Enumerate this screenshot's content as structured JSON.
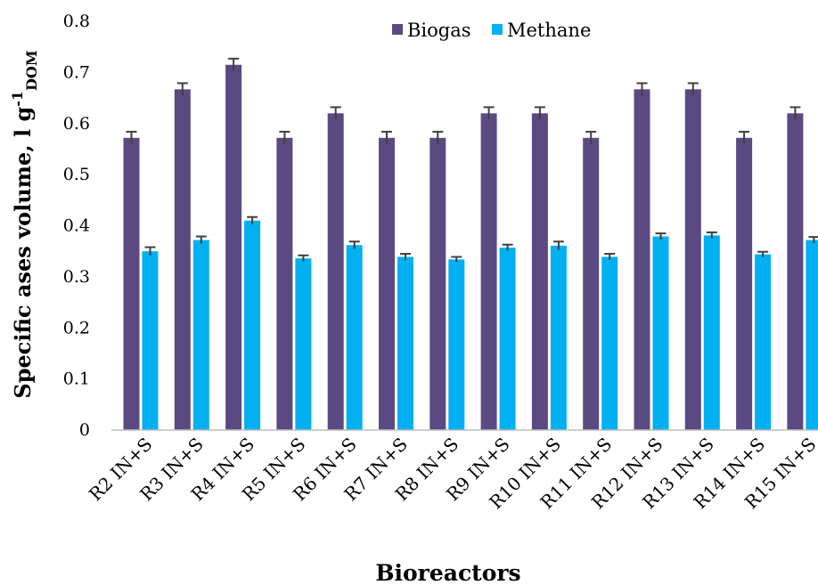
{
  "chart_data": {
    "type": "bar",
    "title": "",
    "xlabel": "Bioreactors",
    "ylabel": {
      "main": "Specific ases volume, l g",
      "sup": "-1",
      "sub": "DOM"
    },
    "ylim": [
      0,
      0.8
    ],
    "yticks": [
      "0",
      "0.1",
      "0.2",
      "0.3",
      "0.4",
      "0.5",
      "0.6",
      "0.7",
      "0.8"
    ],
    "legend_position": "top-right",
    "grid": false,
    "categories": [
      "R2 IN+S",
      "R3 IN+S",
      "R4 IN+S",
      "R5 IN+S",
      "R6 IN+S",
      "R7 IN+S",
      "R8 IN+S",
      "R9 IN+S",
      "R10 IN+S",
      "R11 IN+S",
      "R12 IN+S",
      "R13 IN+S",
      "R14 IN+S",
      "R15 IN+S"
    ],
    "series": [
      {
        "name": "Biogas",
        "color": "#5B4A82",
        "values": [
          0.572,
          0.667,
          0.715,
          0.572,
          0.62,
          0.572,
          0.572,
          0.62,
          0.62,
          0.572,
          0.667,
          0.667,
          0.572,
          0.62
        ],
        "errors": [
          0.012,
          0.012,
          0.012,
          0.012,
          0.012,
          0.012,
          0.012,
          0.012,
          0.012,
          0.012,
          0.012,
          0.012,
          0.012,
          0.012
        ]
      },
      {
        "name": "Methane",
        "color": "#00B0F0",
        "values": [
          0.35,
          0.372,
          0.41,
          0.336,
          0.362,
          0.339,
          0.334,
          0.357,
          0.361,
          0.339,
          0.379,
          0.381,
          0.344,
          0.372
        ],
        "errors": [
          0.008,
          0.007,
          0.007,
          0.006,
          0.007,
          0.006,
          0.005,
          0.006,
          0.008,
          0.006,
          0.006,
          0.006,
          0.005,
          0.006
        ]
      }
    ]
  }
}
